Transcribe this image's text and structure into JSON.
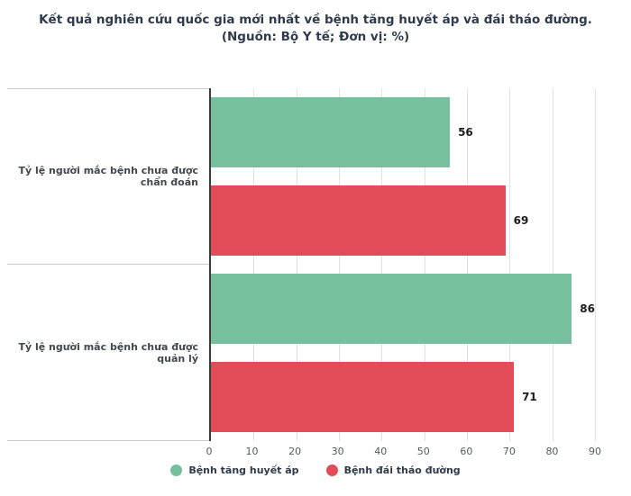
{
  "title": {
    "line1": "Kết quả nghiên cứu quốc gia mới nhất về bệnh tăng huyết áp và đái tháo đường.",
    "line2": "(Nguồn: Bộ Y tế; Đơn vị: %)"
  },
  "chart_data": {
    "type": "bar",
    "orientation": "horizontal",
    "title": "Kết quả nghiên cứu quốc gia mới nhất về bệnh tăng huyết áp và đái tháo đường.",
    "subtitle": "(Nguồn: Bộ Y tế; Đơn vị: %)",
    "unit": "%",
    "categories": [
      "Tỷ lệ người mắc bệnh chưa được chẩn đoán",
      "Tỷ lệ người mắc bệnh chưa được quản lý"
    ],
    "series": [
      {
        "name": "Bệnh tăng huyết áp",
        "color": "#76c09e",
        "values": [
          56,
          86
        ]
      },
      {
        "name": "Bệnh đái tháo đường",
        "color": "#e24b58",
        "values": [
          69,
          71
        ]
      }
    ],
    "xlim": [
      0,
      90
    ],
    "x_ticks": [
      0,
      10,
      20,
      30,
      40,
      50,
      60,
      70,
      80,
      90
    ],
    "grid": true,
    "legend_position": "bottom"
  }
}
